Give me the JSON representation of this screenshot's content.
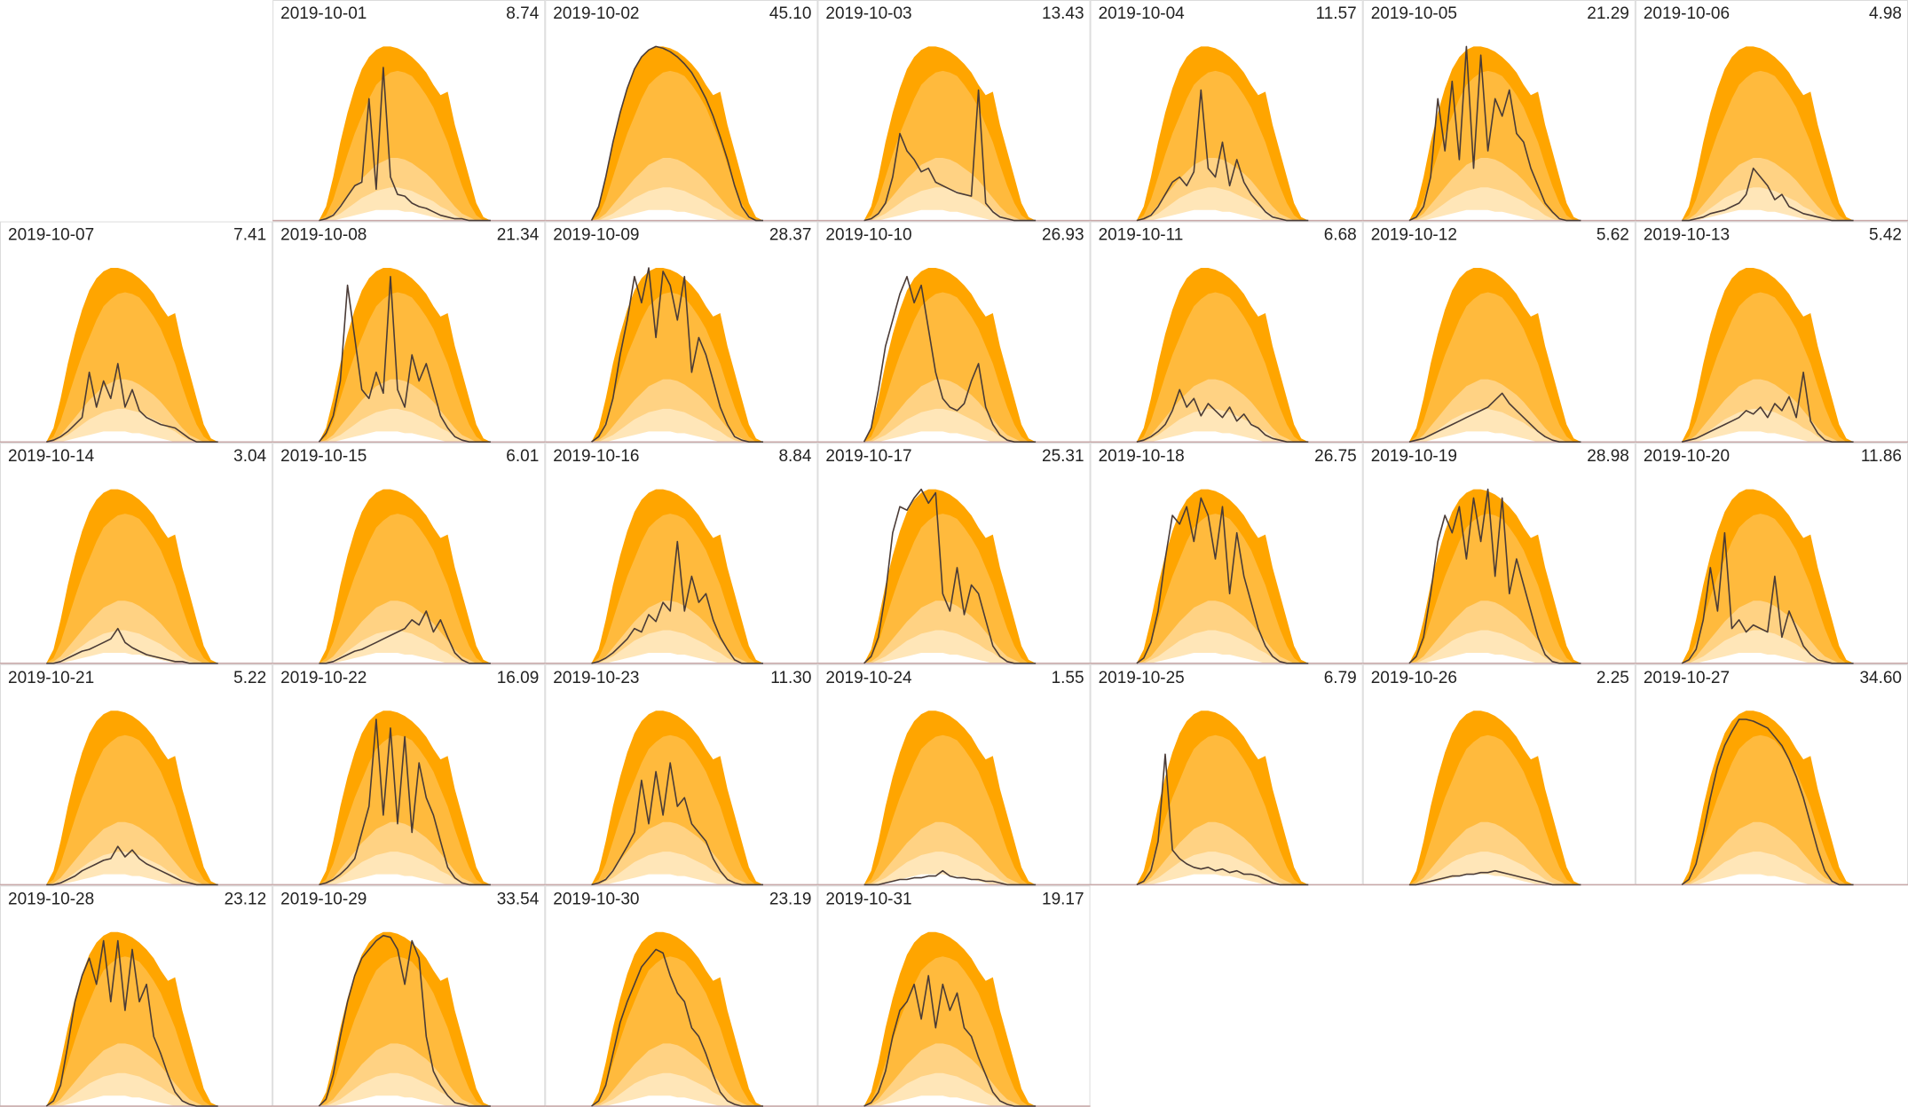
{
  "chart_data": {
    "type": "calendar-area",
    "ylim": [
      0,
      100
    ],
    "line_color": "#4a3b36",
    "bands": [
      {
        "color": "#ffa500",
        "values": [
          0,
          8,
          25,
          45,
          62,
          76,
          87,
          94,
          98,
          100,
          100,
          99,
          97,
          94,
          90,
          85,
          78,
          72,
          74,
          55,
          40,
          25,
          10,
          2,
          0
        ]
      },
      {
        "color": "#ffba3d",
        "values": [
          0,
          3,
          12,
          25,
          38,
          50,
          60,
          70,
          78,
          82,
          85,
          86,
          85,
          83,
          78,
          72,
          65,
          55,
          45,
          32,
          20,
          10,
          3,
          0,
          0
        ]
      },
      {
        "color": "#ffd283",
        "values": [
          0,
          1,
          4,
          9,
          14,
          19,
          24,
          28,
          32,
          34,
          36,
          36,
          35,
          33,
          30,
          27,
          23,
          18,
          13,
          8,
          4,
          2,
          0,
          0,
          0
        ]
      },
      {
        "color": "#ffe6b8",
        "values": [
          0,
          0,
          2,
          4,
          7,
          10,
          13,
          15,
          17,
          18,
          19,
          19,
          18,
          17,
          15,
          13,
          11,
          8,
          6,
          3,
          1,
          0,
          0,
          0,
          0
        ]
      },
      {
        "color": "#ffffff",
        "values": [
          0,
          0,
          0,
          1,
          2,
          3,
          4,
          5,
          6,
          6,
          6,
          6,
          5,
          5,
          4,
          3,
          2,
          1,
          0,
          0,
          0,
          0,
          0,
          0,
          0
        ]
      }
    ],
    "categories": [
      "2019-10-01",
      "2019-10-02",
      "2019-10-03",
      "2019-10-04",
      "2019-10-05",
      "2019-10-06",
      "2019-10-07",
      "2019-10-08",
      "2019-10-09",
      "2019-10-10",
      "2019-10-11",
      "2019-10-12",
      "2019-10-13",
      "2019-10-14",
      "2019-10-15",
      "2019-10-16",
      "2019-10-17",
      "2019-10-18",
      "2019-10-19",
      "2019-10-20",
      "2019-10-21",
      "2019-10-22",
      "2019-10-23",
      "2019-10-24",
      "2019-10-25",
      "2019-10-26",
      "2019-10-27",
      "2019-10-28",
      "2019-10-29",
      "2019-10-30",
      "2019-10-31"
    ],
    "values": [
      8.74,
      45.1,
      13.43,
      11.57,
      21.29,
      4.98,
      7.41,
      21.34,
      28.37,
      26.93,
      6.68,
      5.62,
      5.42,
      3.04,
      6.01,
      8.84,
      25.31,
      26.75,
      28.98,
      11.86,
      5.22,
      16.09,
      11.3,
      1.55,
      6.79,
      2.25,
      34.6,
      23.12,
      33.54,
      23.19,
      19.17
    ],
    "value_labels": [
      "8.74",
      "45.10",
      "13.43",
      "11.57",
      "21.29",
      "4.98",
      "7.41",
      "21.34",
      "28.37",
      "26.93",
      "6.68",
      "5.62",
      "5.42",
      "3.04",
      "6.01",
      "8.84",
      "25.31",
      "26.75",
      "28.98",
      "11.86",
      "5.22",
      "16.09",
      "11.30",
      "1.55",
      "6.79",
      "2.25",
      "34.60",
      "23.12",
      "33.54",
      "23.19",
      "19.17"
    ],
    "profiles": [
      [
        0,
        1,
        3,
        8,
        14,
        20,
        22,
        70,
        18,
        88,
        25,
        15,
        14,
        10,
        8,
        7,
        5,
        3,
        2,
        1,
        1,
        0,
        0,
        0,
        0
      ],
      [
        0,
        8,
        25,
        45,
        62,
        76,
        87,
        94,
        98,
        100,
        99,
        97,
        94,
        90,
        85,
        78,
        70,
        60,
        48,
        35,
        20,
        8,
        2,
        0,
        0
      ],
      [
        0,
        1,
        4,
        10,
        25,
        50,
        40,
        35,
        28,
        30,
        22,
        20,
        18,
        16,
        15,
        14,
        75,
        10,
        5,
        2,
        1,
        0,
        0,
        0,
        0
      ],
      [
        0,
        1,
        3,
        8,
        15,
        22,
        25,
        20,
        28,
        75,
        30,
        25,
        45,
        20,
        35,
        22,
        15,
        10,
        5,
        2,
        1,
        0,
        0,
        0,
        0
      ],
      [
        0,
        2,
        8,
        25,
        70,
        40,
        80,
        35,
        100,
        30,
        95,
        40,
        70,
        60,
        75,
        50,
        45,
        30,
        20,
        10,
        5,
        1,
        0,
        0,
        0
      ],
      [
        0,
        0,
        1,
        2,
        4,
        5,
        6,
        8,
        10,
        15,
        30,
        25,
        20,
        12,
        15,
        8,
        6,
        4,
        3,
        2,
        1,
        0,
        0,
        0,
        0
      ],
      [
        0,
        1,
        3,
        6,
        10,
        14,
        40,
        20,
        35,
        25,
        45,
        20,
        30,
        18,
        14,
        12,
        10,
        9,
        8,
        5,
        2,
        0,
        0,
        0,
        0
      ],
      [
        0,
        5,
        15,
        35,
        90,
        60,
        30,
        25,
        40,
        28,
        95,
        30,
        20,
        50,
        35,
        45,
        30,
        15,
        8,
        3,
        1,
        0,
        0,
        0,
        0
      ],
      [
        0,
        3,
        10,
        25,
        50,
        70,
        95,
        80,
        100,
        60,
        98,
        90,
        70,
        95,
        40,
        60,
        50,
        35,
        20,
        10,
        3,
        1,
        0,
        0,
        0
      ],
      [
        0,
        8,
        30,
        55,
        70,
        85,
        95,
        80,
        90,
        65,
        40,
        25,
        20,
        18,
        22,
        35,
        45,
        20,
        10,
        4,
        1,
        0,
        0,
        0,
        0
      ],
      [
        0,
        1,
        3,
        6,
        10,
        18,
        30,
        20,
        25,
        15,
        22,
        18,
        14,
        20,
        12,
        16,
        10,
        8,
        4,
        2,
        1,
        0,
        0,
        0,
        0
      ],
      [
        0,
        1,
        2,
        4,
        6,
        8,
        10,
        12,
        14,
        16,
        18,
        20,
        24,
        28,
        22,
        18,
        14,
        10,
        6,
        3,
        1,
        0,
        0,
        0,
        0
      ],
      [
        0,
        1,
        2,
        4,
        6,
        8,
        10,
        12,
        14,
        18,
        16,
        20,
        14,
        22,
        18,
        26,
        14,
        40,
        12,
        5,
        1,
        0,
        0,
        0,
        0
      ],
      [
        0,
        0,
        1,
        3,
        5,
        7,
        8,
        10,
        12,
        14,
        20,
        12,
        9,
        7,
        5,
        4,
        3,
        2,
        1,
        1,
        0,
        0,
        0,
        0,
        0
      ],
      [
        0,
        0,
        1,
        3,
        5,
        7,
        8,
        10,
        12,
        14,
        16,
        18,
        20,
        25,
        22,
        30,
        18,
        25,
        15,
        6,
        2,
        0,
        0,
        0,
        0
      ],
      [
        0,
        1,
        3,
        6,
        10,
        14,
        20,
        18,
        28,
        24,
        35,
        30,
        70,
        30,
        50,
        35,
        40,
        25,
        15,
        8,
        2,
        0,
        0,
        0,
        0
      ],
      [
        0,
        4,
        15,
        40,
        75,
        90,
        88,
        95,
        100,
        92,
        98,
        40,
        30,
        55,
        28,
        45,
        40,
        25,
        10,
        4,
        1,
        0,
        0,
        0,
        0
      ],
      [
        0,
        3,
        12,
        30,
        60,
        85,
        80,
        90,
        70,
        95,
        85,
        60,
        90,
        40,
        75,
        50,
        35,
        20,
        10,
        4,
        1,
        0,
        0,
        0,
        0
      ],
      [
        0,
        4,
        15,
        40,
        70,
        85,
        75,
        90,
        60,
        95,
        70,
        100,
        50,
        95,
        40,
        60,
        45,
        30,
        15,
        5,
        1,
        0,
        0,
        0,
        0
      ],
      [
        0,
        2,
        8,
        25,
        55,
        30,
        75,
        20,
        25,
        18,
        22,
        20,
        18,
        50,
        15,
        30,
        20,
        10,
        5,
        2,
        1,
        0,
        0,
        0,
        0
      ],
      [
        0,
        0,
        1,
        3,
        5,
        8,
        10,
        12,
        14,
        15,
        22,
        16,
        20,
        15,
        12,
        10,
        8,
        6,
        4,
        2,
        1,
        0,
        0,
        0,
        0
      ],
      [
        0,
        1,
        3,
        6,
        10,
        15,
        30,
        45,
        95,
        40,
        90,
        35,
        85,
        30,
        70,
        50,
        40,
        25,
        10,
        4,
        1,
        0,
        0,
        0,
        0
      ],
      [
        0,
        1,
        3,
        8,
        15,
        22,
        30,
        60,
        35,
        65,
        40,
        70,
        45,
        50,
        35,
        30,
        25,
        15,
        8,
        3,
        1,
        0,
        0,
        0,
        0
      ],
      [
        0,
        0,
        0,
        1,
        2,
        3,
        3,
        4,
        4,
        5,
        5,
        8,
        5,
        4,
        4,
        3,
        3,
        2,
        2,
        1,
        0,
        0,
        0,
        0,
        0
      ],
      [
        0,
        2,
        8,
        25,
        75,
        20,
        15,
        12,
        10,
        9,
        10,
        8,
        9,
        7,
        8,
        6,
        6,
        5,
        3,
        1,
        0,
        0,
        0,
        0,
        0
      ],
      [
        0,
        0,
        1,
        2,
        3,
        4,
        5,
        5,
        6,
        6,
        7,
        7,
        8,
        7,
        6,
        5,
        4,
        3,
        2,
        1,
        0,
        0,
        0,
        0,
        0
      ],
      [
        0,
        3,
        12,
        30,
        50,
        68,
        80,
        88,
        95,
        95,
        94,
        92,
        90,
        85,
        80,
        72,
        62,
        50,
        35,
        20,
        8,
        2,
        0,
        0,
        0
      ],
      [
        0,
        3,
        12,
        35,
        60,
        75,
        85,
        70,
        95,
        60,
        95,
        55,
        90,
        60,
        70,
        40,
        30,
        18,
        8,
        3,
        1,
        0,
        0,
        0,
        0
      ],
      [
        0,
        4,
        18,
        40,
        60,
        75,
        85,
        90,
        95,
        98,
        97,
        90,
        70,
        95,
        85,
        40,
        20,
        12,
        6,
        2,
        1,
        0,
        0,
        0,
        0
      ],
      [
        0,
        3,
        12,
        30,
        48,
        60,
        70,
        80,
        85,
        90,
        88,
        75,
        65,
        60,
        45,
        40,
        30,
        18,
        8,
        3,
        1,
        0,
        0,
        0,
        0
      ],
      [
        0,
        2,
        8,
        20,
        40,
        55,
        60,
        70,
        50,
        75,
        45,
        70,
        55,
        65,
        45,
        40,
        28,
        18,
        8,
        3,
        1,
        0,
        0,
        0,
        0
      ]
    ]
  }
}
